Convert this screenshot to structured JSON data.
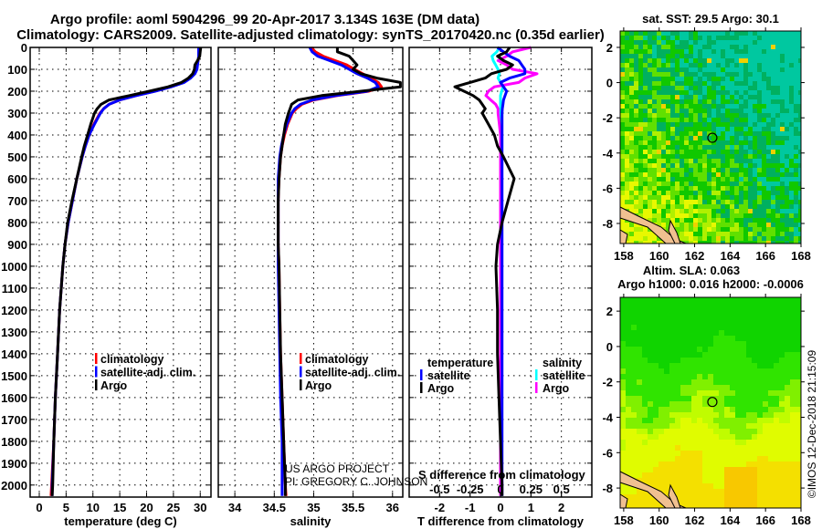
{
  "header": {
    "title_line1": "Argo profile: aoml 5904296_99 20-Apr-2017 3.134S 163E (DM data)",
    "title_line2": "Climatology: CARS2009. Satellite-adjusted climatology: synTS_20170420.nc (0.35d earlier)"
  },
  "credits": {
    "project": "US ARGO PROJECT",
    "pi": "PI: GREGORY C. JOHNSON",
    "timestamp": "©IMOS 12-Dec-2018 21:15:09"
  },
  "chart_data": [
    {
      "id": "temperature",
      "type": "line",
      "title": "",
      "xlabel": "temperature (deg C)",
      "ylabel": "",
      "xlim": [
        -1.7,
        32.0
      ],
      "ylim": [
        2055,
        0
      ],
      "xticks": [
        0,
        5,
        10,
        15,
        20,
        25,
        30
      ],
      "yticks": [
        0,
        100,
        200,
        300,
        400,
        500,
        600,
        700,
        800,
        900,
        1000,
        1100,
        1200,
        1300,
        1400,
        1500,
        1600,
        1700,
        1800,
        1900,
        2000
      ],
      "grid": true,
      "legend": {
        "position": "lower-center",
        "entries": [
          {
            "label": "climatology",
            "color": "#ff0000"
          },
          {
            "label": "satellite-adj. clim.",
            "color": "#0000ff"
          },
          {
            "label": "Argo",
            "color": "#000000"
          }
        ]
      },
      "depth": [
        0,
        20,
        40,
        60,
        80,
        100,
        120,
        140,
        160,
        180,
        200,
        220,
        240,
        260,
        280,
        300,
        350,
        400,
        450,
        500,
        600,
        700,
        800,
        900,
        1000,
        1200,
        1400,
        1600,
        1800,
        2000,
        2050
      ],
      "series": [
        {
          "name": "climatology",
          "color": "#ff0000",
          "values": [
            29.8,
            29.8,
            29.8,
            29.6,
            29.4,
            29.2,
            28.8,
            28.0,
            26.8,
            24.5,
            21.5,
            18.0,
            15.0,
            13.0,
            12.0,
            11.3,
            10.2,
            9.3,
            8.6,
            8.0,
            7.0,
            6.2,
            5.4,
            4.8,
            4.4,
            3.8,
            3.4,
            3.0,
            2.7,
            2.3,
            2.2
          ]
        },
        {
          "name": "satellite-adj. clim.",
          "color": "#0000ff",
          "values": [
            29.7,
            29.7,
            29.7,
            29.6,
            29.5,
            29.4,
            29.0,
            28.2,
            27.0,
            24.6,
            21.6,
            18.1,
            15.0,
            13.0,
            12.0,
            11.4,
            10.3,
            9.3,
            8.6,
            8.0,
            7.0,
            6.2,
            5.4,
            4.8,
            4.4,
            3.8,
            3.4,
            3.0,
            2.7,
            2.4,
            2.4
          ]
        },
        {
          "name": "Argo",
          "color": "#000000",
          "values": [
            30.1,
            30.0,
            29.9,
            29.5,
            29.0,
            28.9,
            28.6,
            27.8,
            26.5,
            24.0,
            20.5,
            16.8,
            13.0,
            11.5,
            10.8,
            10.3,
            9.6,
            9.0,
            8.4,
            7.9,
            7.0,
            6.1,
            5.3,
            4.8,
            4.4,
            3.8,
            3.4,
            3.0,
            2.7,
            2.5,
            2.4
          ]
        }
      ]
    },
    {
      "id": "salinity",
      "type": "line",
      "title": "",
      "xlabel": "salinity",
      "ylabel": "",
      "xlim": [
        33.79,
        36.13
      ],
      "ylim": [
        2055,
        0
      ],
      "xticks": [
        34,
        34.5,
        35,
        35.5,
        36
      ],
      "xticklabels": [
        "34",
        "34.5",
        "35",
        "35.5",
        "36"
      ],
      "grid": true,
      "legend": {
        "position": "lower-center",
        "entries": [
          {
            "label": "climatology",
            "color": "#ff0000"
          },
          {
            "label": "satellite-adj. clim.",
            "color": "#0000ff"
          },
          {
            "label": "Argo",
            "color": "#000000"
          }
        ]
      },
      "depth": [
        0,
        20,
        40,
        60,
        80,
        100,
        120,
        140,
        160,
        180,
        200,
        220,
        240,
        260,
        280,
        300,
        350,
        400,
        450,
        500,
        600,
        700,
        800,
        900,
        1000,
        1200,
        1400,
        1600,
        1800,
        2000,
        2050
      ],
      "series": [
        {
          "name": "climatology",
          "color": "#ff0000",
          "values": [
            34.97,
            35.02,
            35.12,
            35.27,
            35.42,
            35.52,
            35.62,
            35.72,
            35.82,
            35.86,
            35.7,
            35.3,
            35.0,
            34.85,
            34.78,
            34.73,
            34.67,
            34.63,
            34.6,
            34.58,
            34.56,
            34.55,
            34.55,
            34.55,
            34.56,
            34.57,
            34.58,
            34.6,
            34.62,
            34.64,
            34.65
          ]
        },
        {
          "name": "satellite-adj. clim.",
          "color": "#0000ff",
          "values": [
            34.95,
            34.98,
            35.05,
            35.2,
            35.35,
            35.45,
            35.55,
            35.68,
            35.78,
            35.82,
            35.68,
            35.28,
            34.98,
            34.83,
            34.76,
            34.72,
            34.66,
            34.62,
            34.59,
            34.57,
            34.55,
            34.55,
            34.55,
            34.55,
            34.55,
            34.56,
            34.57,
            34.58,
            34.6,
            34.6,
            34.6
          ]
        },
        {
          "name": "Argo",
          "color": "#000000",
          "values": [
            35.3,
            35.3,
            35.45,
            35.5,
            35.55,
            35.5,
            35.6,
            35.8,
            36.1,
            36.1,
            35.6,
            35.1,
            34.8,
            34.72,
            34.7,
            34.68,
            34.64,
            34.62,
            34.6,
            34.58,
            34.56,
            34.55,
            34.55,
            34.55,
            34.56,
            34.57,
            34.58,
            34.6,
            34.62,
            34.64,
            34.64
          ]
        }
      ]
    },
    {
      "id": "differences",
      "type": "line",
      "title": "",
      "xlabel": "T difference from climatology",
      "xlabel2": "S difference from climatology",
      "xlim": [
        -3,
        3
      ],
      "ylim": [
        2055,
        0
      ],
      "xticks": [
        -2,
        -1,
        0,
        1,
        2
      ],
      "xticks2": [
        -0.5,
        -0.25,
        0,
        0.25,
        0.5
      ],
      "xticklabels2": [
        "-0.5",
        "-0.25",
        "0",
        "0.25",
        "0.5"
      ],
      "s_per_t_unit": 0.25,
      "grid": true,
      "legend": {
        "position": "lower-center",
        "temperature_heading": "temperature",
        "salinity_heading": "salinity",
        "entries": [
          {
            "label": "satellite",
            "color": "#0000ff",
            "group": "temperature"
          },
          {
            "label": "Argo",
            "color": "#000000",
            "group": "temperature"
          },
          {
            "label": "satellite",
            "color": "#00ffff",
            "group": "salinity"
          },
          {
            "label": "Argo",
            "color": "#ff00ff",
            "group": "salinity"
          }
        ]
      },
      "depth": [
        0,
        20,
        40,
        60,
        80,
        100,
        120,
        140,
        160,
        180,
        200,
        220,
        240,
        260,
        280,
        300,
        350,
        400,
        450,
        500,
        600,
        700,
        800,
        900,
        1000,
        1200,
        1400,
        1600,
        1800,
        2000,
        2050
      ],
      "series": [
        {
          "name": "salinity satellite",
          "var": "S",
          "color": "#00ffff",
          "values": [
            -0.01,
            -0.03,
            -0.07,
            -0.06,
            -0.04,
            -0.02,
            -0.01,
            -0.02,
            0,
            0.02,
            0.01,
            0,
            0,
            0,
            0,
            0,
            0,
            0,
            0,
            0,
            0,
            0,
            0,
            0,
            0,
            0,
            0,
            0,
            0,
            0,
            0
          ]
        },
        {
          "name": "salinity Argo",
          "var": "S",
          "color": "#ff00ff",
          "values": [
            0.25,
            0.1,
            0.05,
            -0.02,
            0.05,
            0.1,
            0.3,
            0.2,
            0.15,
            -0.05,
            -0.1,
            -0.12,
            -0.08,
            -0.04,
            -0.02,
            -0.02,
            -0.01,
            0,
            0,
            0,
            0,
            0,
            0,
            0,
            0,
            0,
            0,
            0,
            0,
            0,
            0
          ]
        },
        {
          "name": "temperature satellite",
          "var": "T",
          "color": "#0000ff",
          "values": [
            -0.1,
            0.1,
            0.3,
            0.6,
            0.7,
            0.8,
            0.8,
            0.3,
            0,
            0.1,
            0.2,
            0.15,
            0.1,
            0.08,
            0.06,
            0.05,
            0.05,
            0.05,
            0.05,
            0.05,
            0.05,
            0.05,
            0.05,
            0.05,
            0.05,
            0.05,
            0.05,
            0.05,
            0.05,
            0.05,
            0.05
          ]
        },
        {
          "name": "temperature Argo",
          "var": "T",
          "color": "#000000",
          "values": [
            0.3,
            0.2,
            -0.1,
            0.1,
            0.4,
            0.2,
            -0.3,
            -0.5,
            -1.0,
            -1.5,
            -1.2,
            -0.9,
            -0.7,
            -0.6,
            -0.5,
            -0.6,
            -0.4,
            -0.2,
            -0.1,
            0.1,
            0.45,
            0.25,
            0.05,
            -0.1,
            -0.15,
            -0.1,
            -0.1,
            -0.05,
            0,
            0.05,
            0.05
          ]
        }
      ]
    },
    {
      "id": "sst-map",
      "type": "heatmap",
      "title": "sat. SST: 29.5 Argo: 30.1",
      "xlim": [
        157.8,
        168.0
      ],
      "ylim": [
        -9.14,
        2.93
      ],
      "xticks": [
        158,
        160,
        162,
        164,
        166,
        168
      ],
      "yticks": [
        2,
        0,
        -2,
        -4,
        -6,
        -8
      ],
      "float_position": {
        "lon": 163,
        "lat": -3.134
      }
    },
    {
      "id": "sla-map",
      "type": "heatmap",
      "title": "Altim. SLA: 0.063",
      "subtitle": "Argo h1000: 0.016 h2000: -0.0006",
      "xlim": [
        157.8,
        168.0
      ],
      "ylim": [
        -9.13,
        2.78
      ],
      "xticks": [
        158,
        160,
        162,
        164,
        166,
        168
      ],
      "yticks": [
        2,
        0,
        -2,
        -4,
        -6,
        -8
      ],
      "float_position": {
        "lon": 163,
        "lat": -3.134
      }
    }
  ]
}
